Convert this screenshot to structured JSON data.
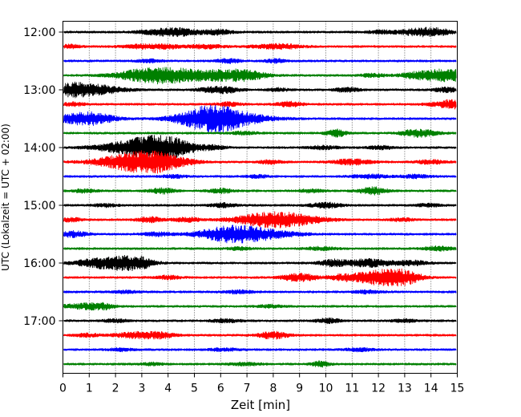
{
  "chart_data": {
    "type": "line",
    "subtype": "helicorder",
    "xlabel": "Zeit  [min]",
    "ylabel": "UTC (Lokalzeit = UTC + 02:00)",
    "xlim": [
      0,
      15
    ],
    "x_ticks": [
      "0",
      "1",
      "2",
      "3",
      "4",
      "5",
      "6",
      "7",
      "8",
      "9",
      "10",
      "11",
      "12",
      "13",
      "14",
      "15"
    ],
    "trace_interval_min": 15,
    "y_tick_labels": [
      "12:00",
      "13:00",
      "14:00",
      "15:00",
      "16:00",
      "17:00"
    ],
    "trace_colors": [
      "#000000",
      "#ff0000",
      "#0000ff",
      "#008000"
    ],
    "vertical_grid": "dotted, every 1 min",
    "series": [
      {
        "start": "12:00",
        "color": "#000000",
        "events": [
          [
            3.8,
            2.6,
            1.0
          ],
          [
            4.6,
            2.0,
            0.8
          ],
          [
            5.9,
            2.2,
            0.6
          ],
          [
            13.3,
            2.0,
            0.7
          ],
          [
            14.1,
            3.2,
            0.8
          ],
          [
            12.1,
            1.4,
            0.6
          ]
        ]
      },
      {
        "start": "12:15",
        "color": "#ff0000",
        "events": [
          [
            0.3,
            1.6,
            0.4
          ],
          [
            3.1,
            1.8,
            0.9
          ],
          [
            5.4,
            1.6,
            0.8
          ],
          [
            8.2,
            2.2,
            1.0
          ],
          [
            4.0,
            1.3,
            0.5
          ]
        ]
      },
      {
        "start": "12:30",
        "color": "#0000ff",
        "events": [
          [
            6.3,
            1.9,
            0.5
          ],
          [
            8.1,
            1.7,
            0.4
          ],
          [
            3.3,
            1.3,
            0.5
          ]
        ]
      },
      {
        "start": "12:45",
        "color": "#008000",
        "events": [
          [
            3.0,
            4.6,
            1.2
          ],
          [
            4.1,
            4.8,
            1.1
          ],
          [
            5.9,
            4.6,
            1.4
          ],
          [
            7.0,
            2.6,
            0.8
          ],
          [
            14.6,
            5.6,
            1.2
          ],
          [
            13.3,
            1.6,
            0.6
          ],
          [
            11.8,
            1.4,
            0.5
          ]
        ]
      },
      {
        "start": "13:00",
        "color": "#000000",
        "events": [
          [
            1.0,
            4.8,
            1.3
          ],
          [
            0.3,
            3.0,
            0.6
          ],
          [
            6.2,
            2.4,
            0.6
          ],
          [
            10.8,
            2.0,
            0.5
          ],
          [
            14.6,
            2.2,
            0.5
          ],
          [
            5.6,
            1.6,
            0.6
          ],
          [
            8.2,
            1.5,
            0.4
          ]
        ]
      },
      {
        "start": "13:15",
        "color": "#ff0000",
        "events": [
          [
            8.6,
            2.4,
            0.5
          ],
          [
            14.8,
            3.8,
            0.8
          ],
          [
            6.3,
            1.8,
            0.5
          ],
          [
            0.4,
            1.5,
            0.5
          ]
        ]
      },
      {
        "start": "13:30",
        "color": "#0000ff",
        "events": [
          [
            0.7,
            3.4,
            1.2
          ],
          [
            1.1,
            2.8,
            1.0
          ],
          [
            5.2,
            5.0,
            1.2
          ],
          [
            6.3,
            6.2,
            1.6
          ],
          [
            5.9,
            4.0,
            0.9
          ]
        ]
      },
      {
        "start": "13:45",
        "color": "#008000",
        "events": [
          [
            10.4,
            3.2,
            0.4
          ],
          [
            13.2,
            2.0,
            0.5
          ],
          [
            13.8,
            2.6,
            0.6
          ],
          [
            6.9,
            1.5,
            0.5
          ]
        ]
      },
      {
        "start": "14:00",
        "color": "#000000",
        "events": [
          [
            2.9,
            5.6,
            1.6
          ],
          [
            3.5,
            4.4,
            1.3
          ],
          [
            4.2,
            3.8,
            1.1
          ],
          [
            9.9,
            1.5,
            0.6
          ],
          [
            12.1,
            1.5,
            0.5
          ],
          [
            5.8,
            1.4,
            0.5
          ]
        ]
      },
      {
        "start": "14:15",
        "color": "#ff0000",
        "events": [
          [
            2.4,
            5.0,
            1.4
          ],
          [
            3.2,
            4.0,
            1.3
          ],
          [
            3.8,
            4.4,
            1.1
          ],
          [
            11.0,
            2.4,
            0.8
          ],
          [
            14.0,
            1.8,
            0.6
          ],
          [
            7.9,
            1.6,
            0.5
          ]
        ]
      },
      {
        "start": "14:30",
        "color": "#0000ff",
        "events": [
          [
            11.7,
            1.6,
            0.8
          ],
          [
            13.4,
            1.4,
            0.6
          ],
          [
            4.2,
            1.3,
            0.5
          ],
          [
            7.4,
            1.2,
            0.5
          ]
        ]
      },
      {
        "start": "14:45",
        "color": "#008000",
        "events": [
          [
            3.8,
            2.4,
            0.5
          ],
          [
            6.0,
            2.0,
            0.5
          ],
          [
            11.8,
            3.2,
            0.6
          ],
          [
            0.8,
            1.4,
            0.5
          ],
          [
            9.4,
            1.4,
            0.5
          ]
        ]
      },
      {
        "start": "15:00",
        "color": "#000000",
        "events": [
          [
            10.0,
            2.4,
            0.6
          ],
          [
            6.1,
            1.8,
            0.5
          ],
          [
            1.6,
            1.4,
            0.5
          ],
          [
            13.9,
            1.3,
            0.5
          ]
        ]
      },
      {
        "start": "15:15",
        "color": "#ff0000",
        "events": [
          [
            7.7,
            5.0,
            1.4
          ],
          [
            8.8,
            3.4,
            1.4
          ],
          [
            3.3,
            2.4,
            0.5
          ],
          [
            4.7,
            1.8,
            0.6
          ],
          [
            0.3,
            1.6,
            0.5
          ],
          [
            12.9,
            1.4,
            0.5
          ]
        ]
      },
      {
        "start": "15:30",
        "color": "#0000ff",
        "events": [
          [
            6.2,
            5.2,
            1.2
          ],
          [
            7.4,
            4.6,
            1.5
          ],
          [
            0.4,
            2.6,
            0.6
          ],
          [
            3.6,
            1.6,
            0.6
          ]
        ]
      },
      {
        "start": "15:45",
        "color": "#008000",
        "events": [
          [
            9.8,
            1.4,
            0.6
          ],
          [
            14.3,
            1.8,
            0.6
          ],
          [
            6.7,
            1.3,
            0.5
          ]
        ]
      },
      {
        "start": "16:00",
        "color": "#000000",
        "events": [
          [
            1.6,
            4.4,
            1.2
          ],
          [
            2.4,
            3.0,
            0.8
          ],
          [
            3.0,
            3.2,
            0.6
          ],
          [
            10.3,
            2.8,
            0.6
          ],
          [
            11.7,
            3.4,
            1.0
          ],
          [
            13.3,
            2.0,
            0.6
          ]
        ]
      },
      {
        "start": "16:15",
        "color": "#ff0000",
        "events": [
          [
            9.0,
            3.6,
            0.7
          ],
          [
            11.9,
            4.6,
            1.2
          ],
          [
            12.5,
            3.0,
            1.0
          ],
          [
            13.1,
            3.2,
            0.6
          ],
          [
            4.0,
            1.6,
            0.5
          ],
          [
            10.6,
            2.0,
            0.5
          ]
        ]
      },
      {
        "start": "16:30",
        "color": "#0000ff",
        "events": [
          [
            6.7,
            1.4,
            0.6
          ],
          [
            11.6,
            1.3,
            0.6
          ],
          [
            2.4,
            1.2,
            0.5
          ]
        ]
      },
      {
        "start": "16:45",
        "color": "#008000",
        "events": [
          [
            1.0,
            2.4,
            0.5
          ],
          [
            1.6,
            2.4,
            0.4
          ],
          [
            0.3,
            1.4,
            0.5
          ],
          [
            7.9,
            1.3,
            0.5
          ]
        ]
      },
      {
        "start": "17:00",
        "color": "#000000",
        "events": [
          [
            10.1,
            2.0,
            0.5
          ],
          [
            6.2,
            1.4,
            0.6
          ],
          [
            2.0,
            1.3,
            0.5
          ],
          [
            13.0,
            1.3,
            0.5
          ]
        ]
      },
      {
        "start": "17:15",
        "color": "#ff0000",
        "events": [
          [
            2.9,
            2.8,
            1.0
          ],
          [
            8.0,
            3.2,
            0.6
          ],
          [
            3.8,
            1.6,
            0.5
          ],
          [
            0.9,
            1.4,
            0.5
          ]
        ]
      },
      {
        "start": "17:30",
        "color": "#0000ff",
        "events": [
          [
            6.1,
            1.2,
            0.6
          ],
          [
            11.3,
            1.3,
            0.6
          ],
          [
            2.2,
            1.2,
            0.5
          ]
        ]
      },
      {
        "start": "17:45",
        "color": "#008000",
        "events": [
          [
            9.8,
            2.2,
            0.4
          ],
          [
            6.9,
            1.3,
            0.6
          ],
          [
            3.4,
            1.2,
            0.5
          ]
        ]
      }
    ]
  }
}
